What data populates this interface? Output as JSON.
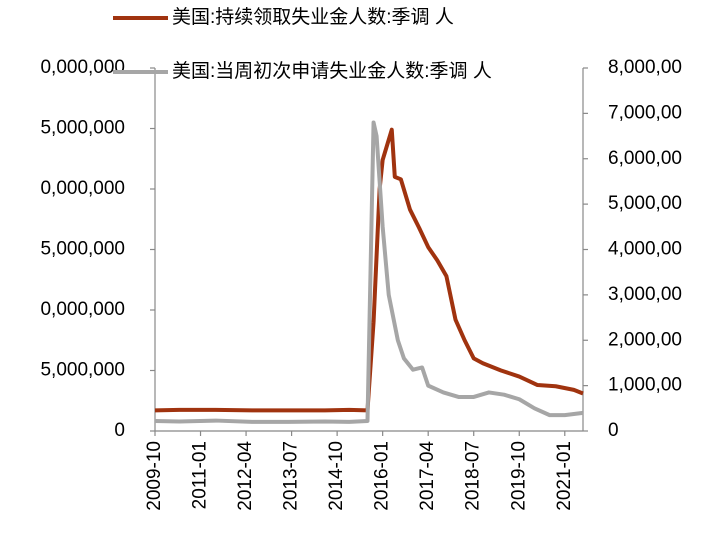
{
  "chart_data": {
    "type": "line",
    "series": [
      {
        "name": "美国:持续领取失业金人数:季调 人",
        "color": "#a0330f",
        "axis": "y",
        "x": [
          "2009-10",
          "2010-06",
          "2011-06",
          "2012-06",
          "2013-06",
          "2014-06",
          "2015-02",
          "2015-08",
          "2015-10",
          "2015-12",
          "2016-01",
          "2016-04",
          "2016-05",
          "2016-07",
          "2016-10",
          "2017-01",
          "2017-04",
          "2017-07",
          "2017-10",
          "2018-01",
          "2018-04",
          "2018-07",
          "2018-10",
          "2019-04",
          "2019-10",
          "2020-04",
          "2020-10",
          "2021-04",
          "2021-07"
        ],
        "values": [
          1700000,
          1750000,
          1750000,
          1700000,
          1700000,
          1700000,
          1750000,
          1700000,
          9000000,
          20000000,
          22400000,
          24900000,
          21000000,
          20800000,
          18300000,
          16800000,
          15200000,
          14100000,
          12800000,
          9200000,
          7500000,
          6000000,
          5600000,
          5000000,
          4500000,
          3800000,
          3700000,
          3400000,
          3100000
        ]
      },
      {
        "name": "美国:当周初次申请失业金人数:季调 人",
        "color": "#a6a6a6",
        "axis": "y2",
        "x": [
          "2009-10",
          "2010-06",
          "2011-06",
          "2012-06",
          "2013-06",
          "2014-06",
          "2015-02",
          "2015-08",
          "2015-10",
          "2015-11",
          "2016-01",
          "2016-03",
          "2016-06",
          "2016-08",
          "2016-11",
          "2017-02",
          "2017-04",
          "2017-09",
          "2018-02",
          "2018-07",
          "2018-12",
          "2019-05",
          "2019-10",
          "2020-03",
          "2020-08",
          "2021-01",
          "2021-07"
        ],
        "values": [
          220000,
          210000,
          230000,
          200000,
          200000,
          210000,
          200000,
          220000,
          6800000,
          6500000,
          4500000,
          3000000,
          2000000,
          1600000,
          1350000,
          1400000,
          1000000,
          850000,
          750000,
          750000,
          850000,
          800000,
          700000,
          500000,
          350000,
          350000,
          400000
        ]
      }
    ],
    "xlim": [
      "2009-10",
      "2021-07"
    ],
    "xticks": [
      "2009-10",
      "2011-01",
      "2012-04",
      "2013-07",
      "2014-10",
      "2016-01",
      "2017-04",
      "2018-07",
      "2019-10",
      "2021-01"
    ],
    "ylim": [
      0,
      30000000
    ],
    "yticks": [
      0,
      {
        "value": 5000000,
        "label": "5,000,000"
      },
      {
        "value": 10000000,
        "label": "0,000,000"
      },
      {
        "value": 15000000,
        "label": "5,000,000"
      },
      {
        "value": 20000000,
        "label": "0,000,000"
      },
      {
        "value": 25000000,
        "label": "5,000,000"
      },
      {
        "value": 30000000,
        "label": "0,000,000"
      }
    ],
    "y2lim": [
      0,
      8000000
    ],
    "y2ticks": [
      0,
      {
        "value": 1000000,
        "label": "1,000,00"
      },
      {
        "value": 2000000,
        "label": "2,000,00"
      },
      {
        "value": 3000000,
        "label": "3,000,00"
      },
      {
        "value": 4000000,
        "label": "4,000,00"
      },
      {
        "value": 5000000,
        "label": "5,000,00"
      },
      {
        "value": 6000000,
        "label": "6,000,00"
      },
      {
        "value": 7000000,
        "label": "7,000,00"
      },
      {
        "value": 8000000,
        "label": "8,000,00"
      }
    ],
    "legend": "top"
  }
}
